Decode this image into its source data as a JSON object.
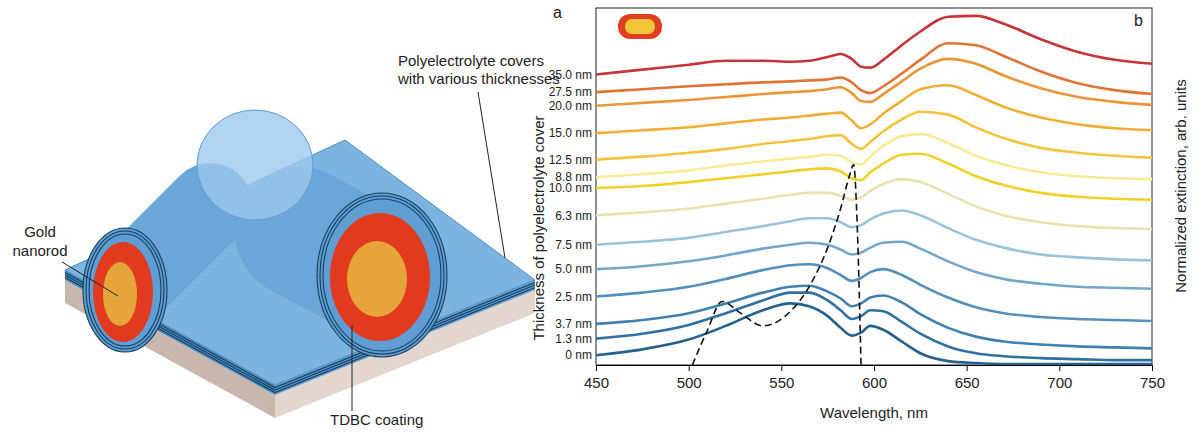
{
  "diagram": {
    "panel": "a",
    "covers_label": [
      "Polyelectrolyte covers",
      "with various thicknesses"
    ],
    "rod_label": [
      "Gold",
      "nanorod"
    ],
    "coating_label": "TDBC coating"
  },
  "chart_data": {
    "type": "line",
    "panel": "b",
    "xlabel": "Wavelength, nm",
    "ylabel": "Thickness of polyelectrolyte cover",
    "ylabel_right": "Normalized extinction, arb. units",
    "xlim": [
      450,
      750
    ],
    "xticks": [
      450,
      500,
      550,
      600,
      650,
      700,
      750
    ],
    "ylim": [
      0,
      36.5
    ],
    "yticks": [],
    "tick_labels": "x",
    "grid": false,
    "x": [
      450,
      475,
      500,
      520,
      540,
      555,
      565,
      575,
      582,
      588,
      593,
      598,
      605,
      615,
      625,
      640,
      655,
      670,
      690,
      710,
      730,
      750
    ],
    "series": [
      {
        "name": "0 nm",
        "color": "#24618f",
        "values": [
          1.0,
          1.6,
          2.6,
          4.0,
          5.6,
          6.3,
          6.0,
          5.0,
          3.8,
          3.0,
          3.3,
          4.0,
          3.6,
          2.4,
          1.2,
          0.4,
          0.2,
          0.1,
          0.1,
          0.1,
          0.1,
          0.1
        ]
      },
      {
        "name": "1.3 nm",
        "color": "#2f70a0",
        "values": [
          2.7,
          3.2,
          4.1,
          5.3,
          6.6,
          7.4,
          7.4,
          6.6,
          5.6,
          4.7,
          5.0,
          5.6,
          5.5,
          4.4,
          3.2,
          1.9,
          1.2,
          0.9,
          0.7,
          0.6,
          0.5,
          0.5
        ]
      },
      {
        "name": "3.7 nm",
        "color": "#3f80ae",
        "values": [
          4.2,
          4.6,
          5.3,
          6.3,
          7.4,
          8.0,
          8.1,
          7.5,
          6.8,
          6.0,
          6.3,
          6.9,
          7.1,
          6.4,
          5.2,
          3.8,
          2.9,
          2.4,
          2.1,
          1.9,
          1.8,
          1.7
        ]
      },
      {
        "name": "2.5 nm",
        "color": "#558fbb",
        "values": [
          7.0,
          7.4,
          8.0,
          8.8,
          9.7,
          10.2,
          10.3,
          9.9,
          9.2,
          8.6,
          8.9,
          9.5,
          9.8,
          9.2,
          8.2,
          6.9,
          5.9,
          5.3,
          4.9,
          4.7,
          4.6,
          4.5
        ]
      },
      {
        "name": "5.0 nm",
        "color": "#74a6c9",
        "values": [
          9.8,
          10.1,
          10.6,
          11.2,
          11.9,
          12.3,
          12.5,
          12.3,
          11.8,
          11.3,
          11.5,
          12.0,
          12.5,
          12.6,
          11.9,
          10.6,
          9.5,
          8.8,
          8.3,
          8.0,
          7.9,
          7.8
        ]
      },
      {
        "name": "7.5 nm",
        "color": "#9cc2da",
        "values": [
          12.3,
          12.6,
          13.0,
          13.6,
          14.2,
          14.7,
          15.0,
          15.0,
          14.6,
          14.1,
          14.3,
          14.9,
          15.5,
          15.8,
          15.3,
          14.0,
          12.8,
          12.0,
          11.3,
          11.0,
          10.8,
          10.7
        ]
      },
      {
        "name": "6.3 nm",
        "color": "#e9e2b0",
        "values": [
          15.3,
          15.6,
          16.0,
          16.5,
          17.0,
          17.4,
          17.6,
          17.6,
          17.3,
          16.9,
          17.1,
          17.8,
          18.5,
          19.0,
          18.7,
          17.5,
          16.2,
          15.3,
          14.6,
          14.2,
          14.0,
          13.9
        ]
      },
      {
        "name": "10.0 nm",
        "color": "#f3cf2a",
        "values": [
          18.1,
          18.3,
          18.7,
          19.1,
          19.5,
          19.8,
          20.0,
          20.1,
          19.8,
          19.1,
          18.9,
          19.7,
          20.6,
          21.5,
          21.6,
          20.6,
          19.3,
          18.4,
          17.6,
          17.2,
          17.0,
          16.9
        ]
      },
      {
        "name": "8.8 nm",
        "color": "#f8ea96",
        "values": [
          19.2,
          19.5,
          19.9,
          20.4,
          20.8,
          21.1,
          21.3,
          21.5,
          21.4,
          20.7,
          20.5,
          21.3,
          22.4,
          23.4,
          23.6,
          22.7,
          21.4,
          20.5,
          19.7,
          19.3,
          19.1,
          19.0
        ]
      },
      {
        "name": "12.5 nm",
        "color": "#f5c43e",
        "values": [
          21.0,
          21.3,
          21.7,
          22.1,
          22.6,
          22.9,
          23.1,
          23.4,
          23.5,
          22.6,
          22.1,
          22.8,
          23.9,
          25.1,
          25.9,
          25.6,
          24.3,
          23.2,
          22.2,
          21.7,
          21.4,
          21.2
        ]
      },
      {
        "name": "15.0 nm",
        "color": "#f0ae38",
        "values": [
          23.7,
          24.0,
          24.3,
          24.7,
          25.1,
          25.3,
          25.5,
          25.7,
          25.8,
          25.0,
          24.2,
          24.6,
          25.7,
          27.0,
          28.2,
          28.6,
          27.6,
          26.4,
          25.3,
          24.6,
          24.2,
          24.0
        ]
      },
      {
        "name": "20.0 nm",
        "color": "#e99638",
        "values": [
          26.5,
          26.8,
          27.1,
          27.4,
          27.7,
          27.9,
          28.0,
          28.2,
          28.4,
          27.8,
          27.0,
          26.9,
          27.7,
          29.0,
          30.3,
          31.3,
          30.8,
          29.6,
          28.3,
          27.4,
          26.9,
          26.6
        ]
      },
      {
        "name": "27.5 nm",
        "color": "#df7434",
        "values": [
          27.9,
          28.2,
          28.5,
          28.7,
          28.9,
          29.0,
          29.1,
          29.2,
          29.4,
          28.9,
          28.1,
          27.8,
          28.5,
          29.8,
          31.2,
          32.9,
          32.7,
          31.6,
          30.0,
          28.8,
          28.1,
          27.7
        ]
      },
      {
        "name": "35.0 nm",
        "color": "#c53539",
        "values": [
          29.7,
          30.2,
          30.7,
          31.1,
          31.1,
          31.0,
          31.1,
          31.5,
          31.8,
          31.3,
          30.5,
          30.4,
          31.2,
          32.7,
          34.1,
          35.6,
          35.7,
          34.9,
          33.3,
          32.0,
          31.2,
          30.8
        ]
      },
      {
        "color": "#111111",
        "line_style": "dashed",
        "x": [
          502,
          510,
          518,
          528,
          540,
          555,
          565,
          575,
          582,
          587,
          589,
          591,
          593
        ],
        "values": [
          0,
          3.5,
          6.5,
          5.3,
          4.0,
          5.5,
          8.0,
          12.0,
          16.0,
          19.5,
          20.5,
          14.0,
          0
        ]
      }
    ]
  }
}
